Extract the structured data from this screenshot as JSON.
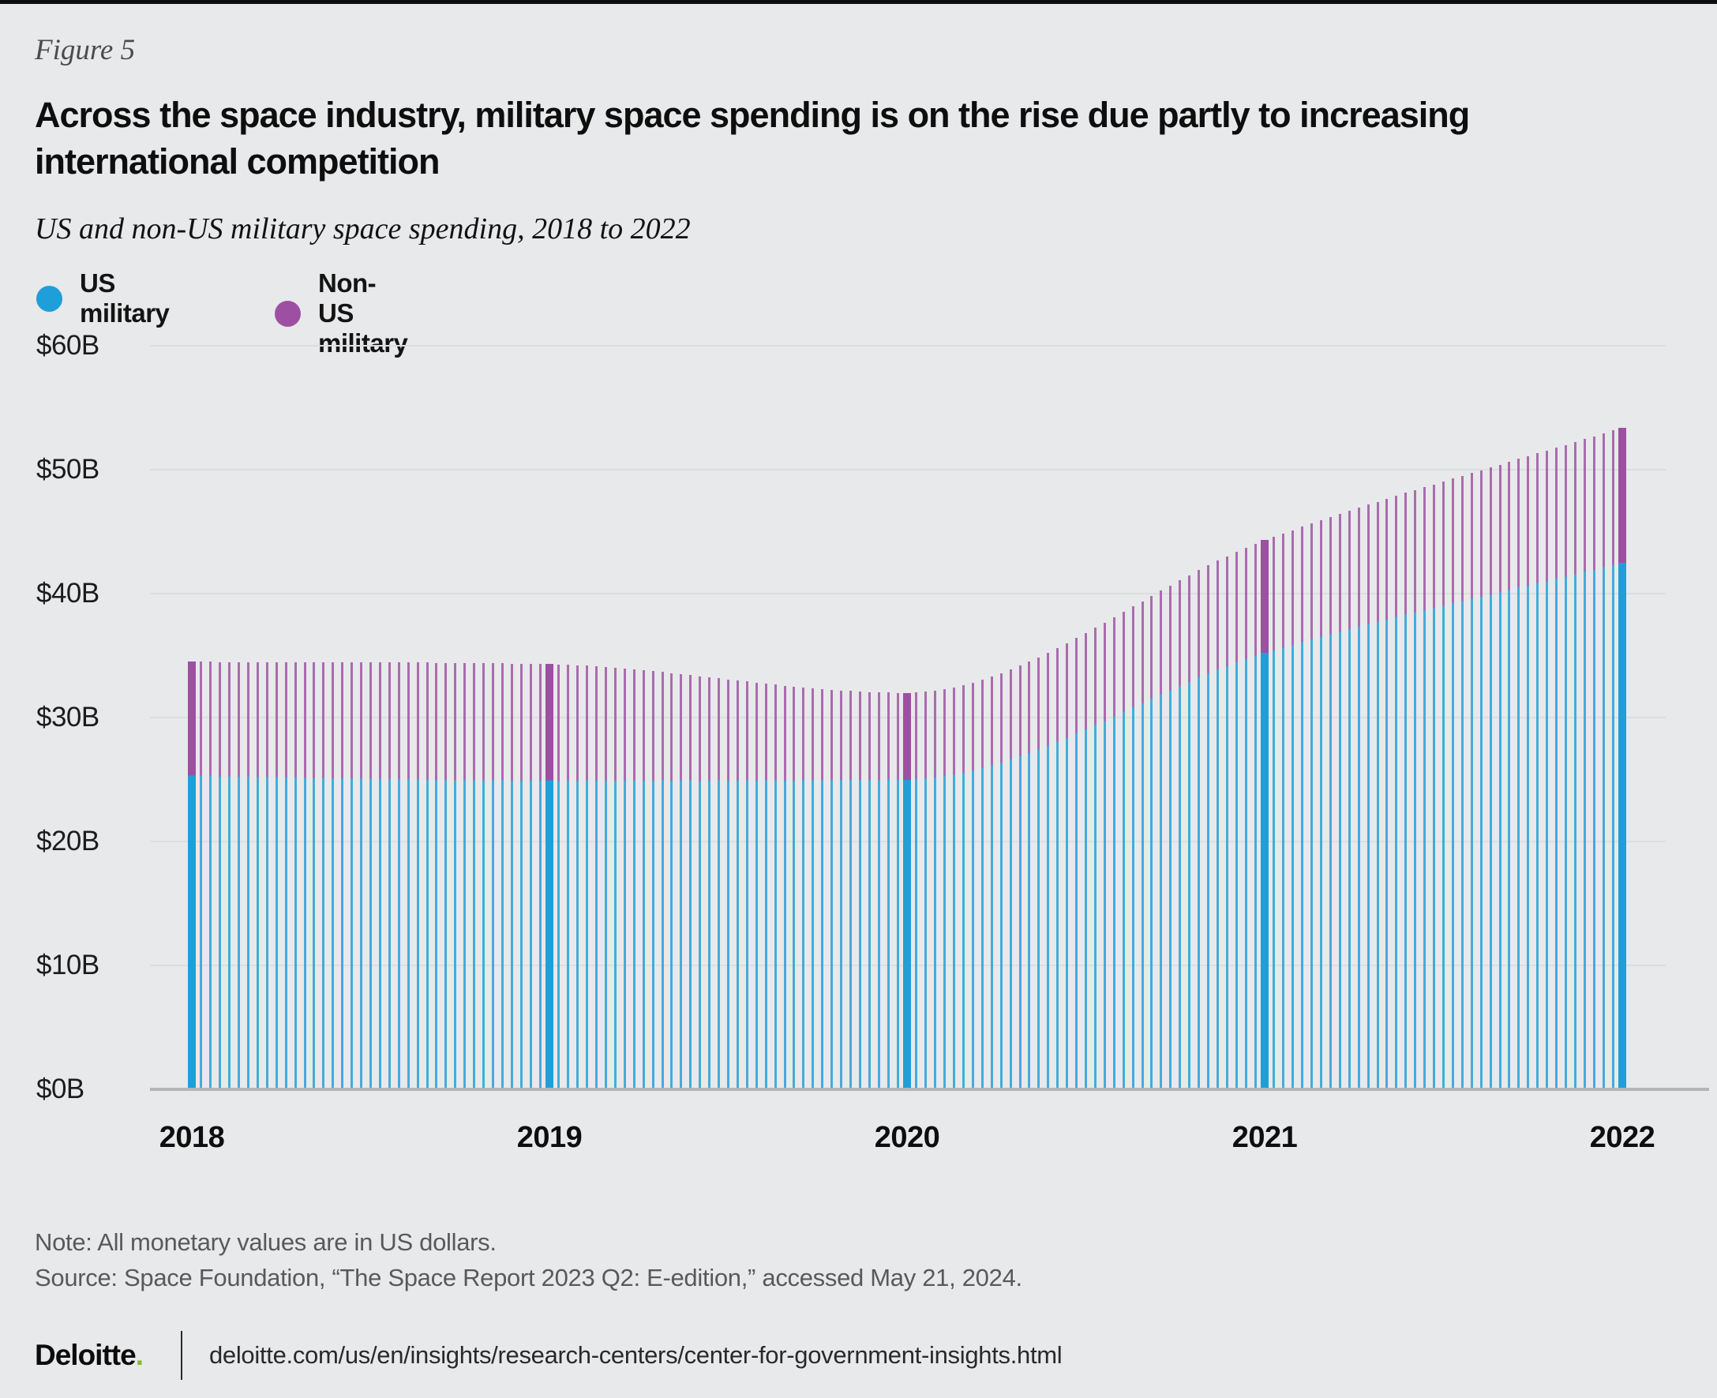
{
  "figure_label": "Figure 5",
  "title_lines": [
    "Across the space industry, military space spending is on the rise due partly to increasing",
    "international competition"
  ],
  "subtitle": "US and non-US military space spending, 2018 to 2022",
  "legend": [
    {
      "label": "US military",
      "color": "#1f9fd9"
    },
    {
      "label": "Non-US military",
      "color": "#9d50a2"
    }
  ],
  "chart_data": {
    "type": "bar",
    "stacked": true,
    "title": "US and non-US military space spending, 2018 to 2022",
    "categories": [
      "2018",
      "2019",
      "2020",
      "2021",
      "2022"
    ],
    "series": [
      {
        "name": "US military",
        "color": "#1f9fd9",
        "values": [
          25.3,
          24.9,
          25.0,
          35.2,
          42.5
        ]
      },
      {
        "name": "Non-US military",
        "color": "#9d50a2",
        "values": [
          9.2,
          9.4,
          7.0,
          9.1,
          10.9
        ]
      }
    ],
    "totals": [
      34.5,
      34.3,
      32.0,
      44.3,
      53.4
    ],
    "units": "US $ billions",
    "ylim": [
      0,
      60
    ],
    "y_tick_step": 10,
    "grid": "horizontal",
    "legend_position": "top-left",
    "style_note": "thick bar at each year with 37 thin smoothly-interpolated bars between years"
  },
  "y_axis": {
    "ticks": [
      "$60B",
      "$50B",
      "$40B",
      "$30B",
      "$20B",
      "$10B",
      "$0B"
    ]
  },
  "x_axis": {
    "labels": [
      "2018",
      "2019",
      "2020",
      "2021",
      "2022"
    ]
  },
  "note": "Note: All monetary values are in US dollars.",
  "source": "Source: Space Foundation, “The Space Report 2023 Q2: E-edition,” accessed May 21, 2024.",
  "footer": {
    "brand": "Deloitte",
    "brand_dot": ".",
    "url": "deloitte.com/us/en/insights/research-centers/center-for-government-insights.html"
  },
  "colors": {
    "background": "#e8e9ea",
    "us_military_blue": "#1f9fd9",
    "non_us_military_purple": "#9d50a2",
    "gridline": "#dcddde",
    "axis_baseline": "#b4b5b7",
    "deloitte_green": "#86bc25",
    "top_rule": "#0d0d0d"
  }
}
